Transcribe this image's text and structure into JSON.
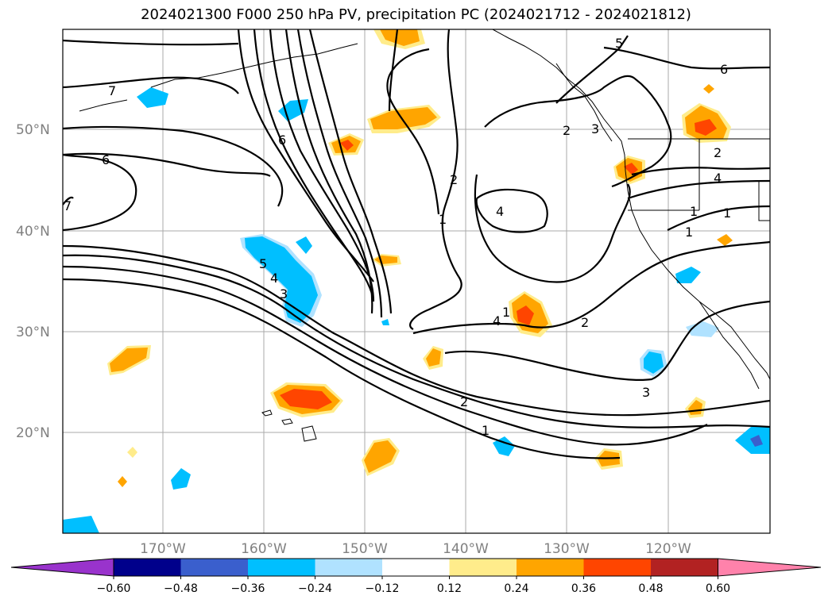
{
  "title": "2024021300 F000 250 hPa PV, precipitation PC (2024021712 - 2024021812)",
  "map": {
    "lat_labels": [
      "50°N",
      "40°N",
      "30°N",
      "20°N"
    ],
    "lon_labels": [
      "170°W",
      "160°W",
      "150°W",
      "140°W",
      "130°W",
      "120°W"
    ],
    "pv_contour_labels": [
      "7",
      "6",
      "6",
      "5",
      "4",
      "3",
      "2",
      "1",
      "5",
      "4",
      "3",
      "2",
      "1",
      "1",
      "2",
      "2",
      "3",
      "1",
      "6",
      "4",
      "1",
      "2",
      "1",
      "4",
      "7"
    ]
  },
  "colorbar": {
    "colors": [
      "#9933cc",
      "#00008b",
      "#3a5fcd",
      "#00bfff",
      "#b0e2ff",
      "#ffffff",
      "#ffec8b",
      "#ffa500",
      "#ff4500",
      "#b22222",
      "#ff82ab"
    ],
    "tick_labels": [
      "−0.60",
      "−0.48",
      "−0.36",
      "−0.24",
      "−0.12",
      "0.12",
      "0.24",
      "0.36",
      "0.48",
      "0.60"
    ]
  }
}
